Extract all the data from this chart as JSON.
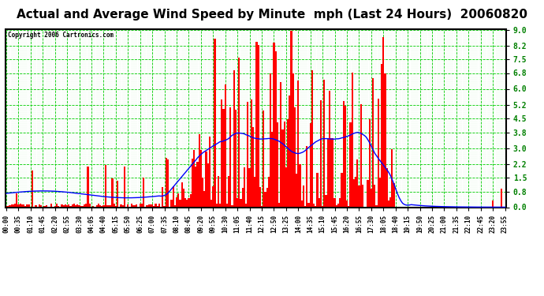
{
  "title": "Actual and Average Wind Speed by Minute  mph (Last 24 Hours)  20060820",
  "copyright": "Copyright 2006 Cartronics.com",
  "yticks": [
    0.0,
    0.8,
    1.5,
    2.2,
    3.0,
    3.8,
    4.5,
    5.2,
    6.0,
    6.8,
    7.5,
    8.2,
    9.0
  ],
  "ymax": 9.0,
  "ymin": 0.0,
  "bg_color": "#ffffff",
  "plot_bg_color": "#ffffff",
  "bar_color": "#ff0000",
  "line_color": "#0000ff",
  "grid_color": "#00cc00",
  "border_color": "#000000",
  "title_fontsize": 11,
  "tick_fontsize": 7,
  "n_minutes": 288,
  "xtick_interval": 7,
  "seed": 12345
}
